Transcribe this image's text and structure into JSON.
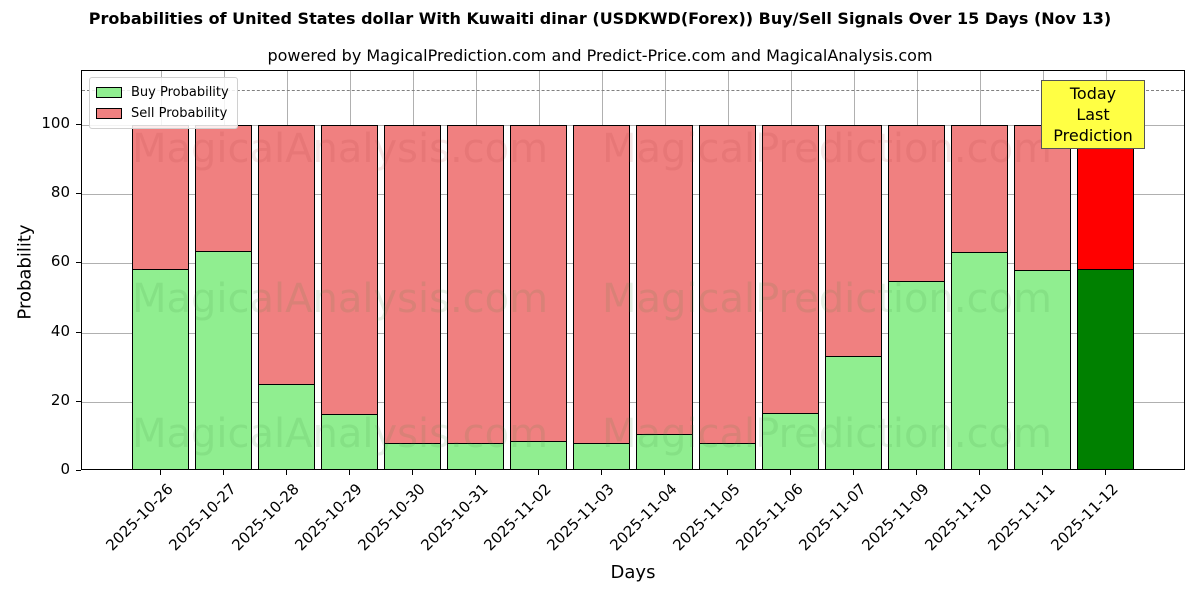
{
  "title": "Probabilities of United States dollar With Kuwaiti dinar (USDKWD(Forex)) Buy/Sell Signals Over 15 Days (Nov 13)",
  "subtitle": "powered by MagicalPrediction.com and Predict-Price.com and MagicalAnalysis.com",
  "legend": {
    "buy": "Buy Probability",
    "sell": "Sell Probability"
  },
  "annotation": {
    "line1": "Today",
    "line2": "Last Prediction"
  },
  "watermarks": [
    "MagicalAnalysis.com",
    "MagicalPrediction.com"
  ],
  "colors": {
    "buy": "#90ee90",
    "sell": "#f08080",
    "buy_today": "#008000",
    "sell_today": "#ff0000",
    "annotation_bg": "#ffff44"
  },
  "chart_data": {
    "type": "bar",
    "stacked": true,
    "title": "Probabilities of United States dollar With Kuwaiti dinar (USDKWD(Forex)) Buy/Sell Signals Over 15 Days (Nov 13)",
    "subtitle": "powered by MagicalPrediction.com and Predict-Price.com and MagicalAnalysis.com",
    "xlabel": "Days",
    "ylabel": "Probability",
    "ylim": [
      0,
      115.6
    ],
    "yticks": [
      0,
      20,
      40,
      60,
      80,
      100
    ],
    "grid": true,
    "legend_position": "upper left",
    "reference_line": {
      "y": 110,
      "style": "dashed",
      "color": "#808080"
    },
    "categories": [
      "2025-10-26",
      "2025-10-27",
      "2025-10-28",
      "2025-10-29",
      "2025-10-30",
      "2025-10-31",
      "2025-11-02",
      "2025-11-03",
      "2025-11-04",
      "2025-11-05",
      "2025-11-06",
      "2025-11-07",
      "2025-11-09",
      "2025-11-10",
      "2025-11-11",
      "2025-11-12"
    ],
    "series": [
      {
        "name": "Buy Probability",
        "values": [
          58.5,
          63.6,
          25.0,
          16.6,
          8.0,
          8.0,
          8.8,
          8.0,
          10.8,
          8.0,
          16.7,
          33.3,
          54.8,
          63.3,
          58.2,
          58.5
        ]
      },
      {
        "name": "Sell Probability",
        "values": [
          41.5,
          36.4,
          75.0,
          83.4,
          92.0,
          92.0,
          91.2,
          92.0,
          89.2,
          92.0,
          83.3,
          66.7,
          45.2,
          36.7,
          41.8,
          41.5
        ]
      }
    ],
    "highlighted_category": "2025-11-12",
    "annotation": "Today\nLast Prediction"
  }
}
